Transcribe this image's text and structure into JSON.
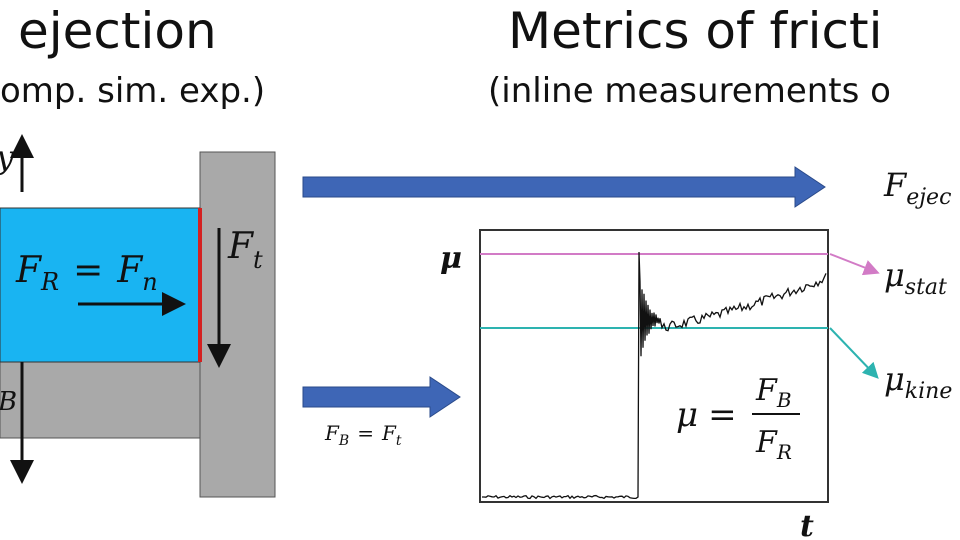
{
  "header": {
    "left_title": "ejection",
    "left_subtitle": "omp. sim. exp.)",
    "right_title": "Metrics of fricti",
    "right_subtitle": "(inline measurements o"
  },
  "diagram": {
    "top_arrow_label": "y",
    "bottom_arrow_label": "B",
    "force_eq": {
      "lhs": "F",
      "lhs_sub": "R",
      "op": "=",
      "rhs": "F",
      "rhs_sub": "n"
    },
    "wall_force": {
      "sym": "F",
      "sub": "t"
    },
    "arrow_eq": {
      "lhs": "F",
      "lhs_sub": "B",
      "op": "=",
      "rhs": "F",
      "rhs_sub": "t"
    },
    "plot": {
      "y_label": "μ",
      "x_label": "t",
      "formula": {
        "lhs": "μ",
        "op": "=",
        "num": "F",
        "num_sub": "B",
        "den": "F",
        "den_sub": "R"
      }
    },
    "outputs": [
      {
        "sym": "F",
        "sub": "ejec"
      },
      {
        "sym": "μ",
        "sub": "stat"
      },
      {
        "sym": "μ",
        "sub": "kine"
      }
    ]
  }
}
